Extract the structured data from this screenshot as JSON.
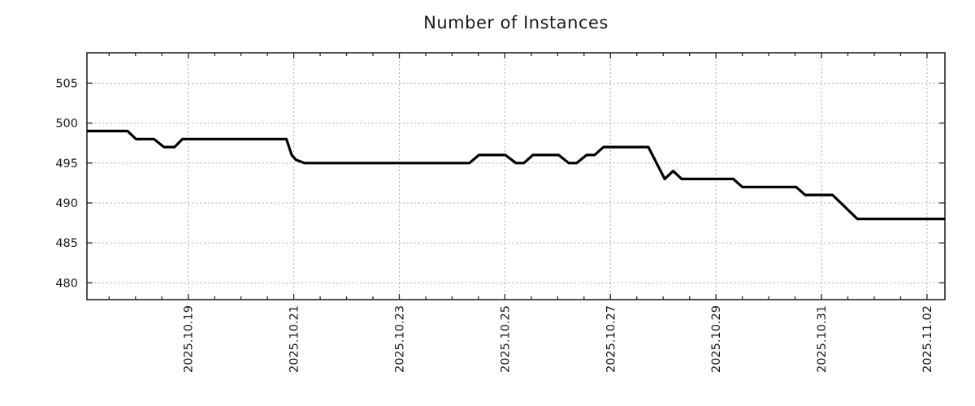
{
  "colors": {
    "line": "#000000",
    "grid": "#a8a8a8",
    "border": "#262626",
    "text": "#1a1a1a",
    "background": "#ffffff"
  },
  "chart_data": {
    "type": "line",
    "title": "Number of Instances",
    "xlabel": "",
    "ylabel": "",
    "legend": "none",
    "grid": "dotted",
    "x_unit": "days since 2025-10-17 00:00",
    "xlim": [
      0.08,
      16.34
    ],
    "ylim": [
      477.9,
      508.8
    ],
    "y_ticks": [
      480,
      485,
      490,
      495,
      500,
      505
    ],
    "x_minor_step": 0.5,
    "x_tick_label_rotation": -90,
    "x_major_ticks": [
      {
        "t": 2,
        "label": "2025.10.19"
      },
      {
        "t": 4,
        "label": "2025.10.21"
      },
      {
        "t": 6,
        "label": "2025.10.23"
      },
      {
        "t": 8,
        "label": "2025.10.25"
      },
      {
        "t": 10,
        "label": "2025.10.27"
      },
      {
        "t": 12,
        "label": "2025.10.29"
      },
      {
        "t": 14,
        "label": "2025.10.31"
      },
      {
        "t": 16,
        "label": "2025.11.02"
      }
    ],
    "series": [
      {
        "name": "instances",
        "color": "#000000",
        "points": [
          [
            0.08,
            499
          ],
          [
            0.85,
            499
          ],
          [
            1.01,
            498
          ],
          [
            1.35,
            498
          ],
          [
            1.54,
            497
          ],
          [
            1.74,
            497
          ],
          [
            1.89,
            498
          ],
          [
            3.86,
            498
          ],
          [
            3.96,
            496
          ],
          [
            4.04,
            495.4
          ],
          [
            4.2,
            495
          ],
          [
            7.33,
            495
          ],
          [
            7.51,
            496
          ],
          [
            8.01,
            496
          ],
          [
            8.21,
            495
          ],
          [
            8.36,
            495
          ],
          [
            8.53,
            496
          ],
          [
            9.02,
            496
          ],
          [
            9.21,
            495
          ],
          [
            9.36,
            495
          ],
          [
            9.55,
            496
          ],
          [
            9.7,
            496
          ],
          [
            9.87,
            497
          ],
          [
            10.72,
            497
          ],
          [
            11.03,
            493
          ],
          [
            11.19,
            494
          ],
          [
            11.35,
            493
          ],
          [
            12.33,
            493
          ],
          [
            12.5,
            492
          ],
          [
            13.52,
            492
          ],
          [
            13.69,
            491
          ],
          [
            14.21,
            491
          ],
          [
            14.68,
            488
          ],
          [
            16.34,
            488
          ]
        ]
      }
    ]
  }
}
